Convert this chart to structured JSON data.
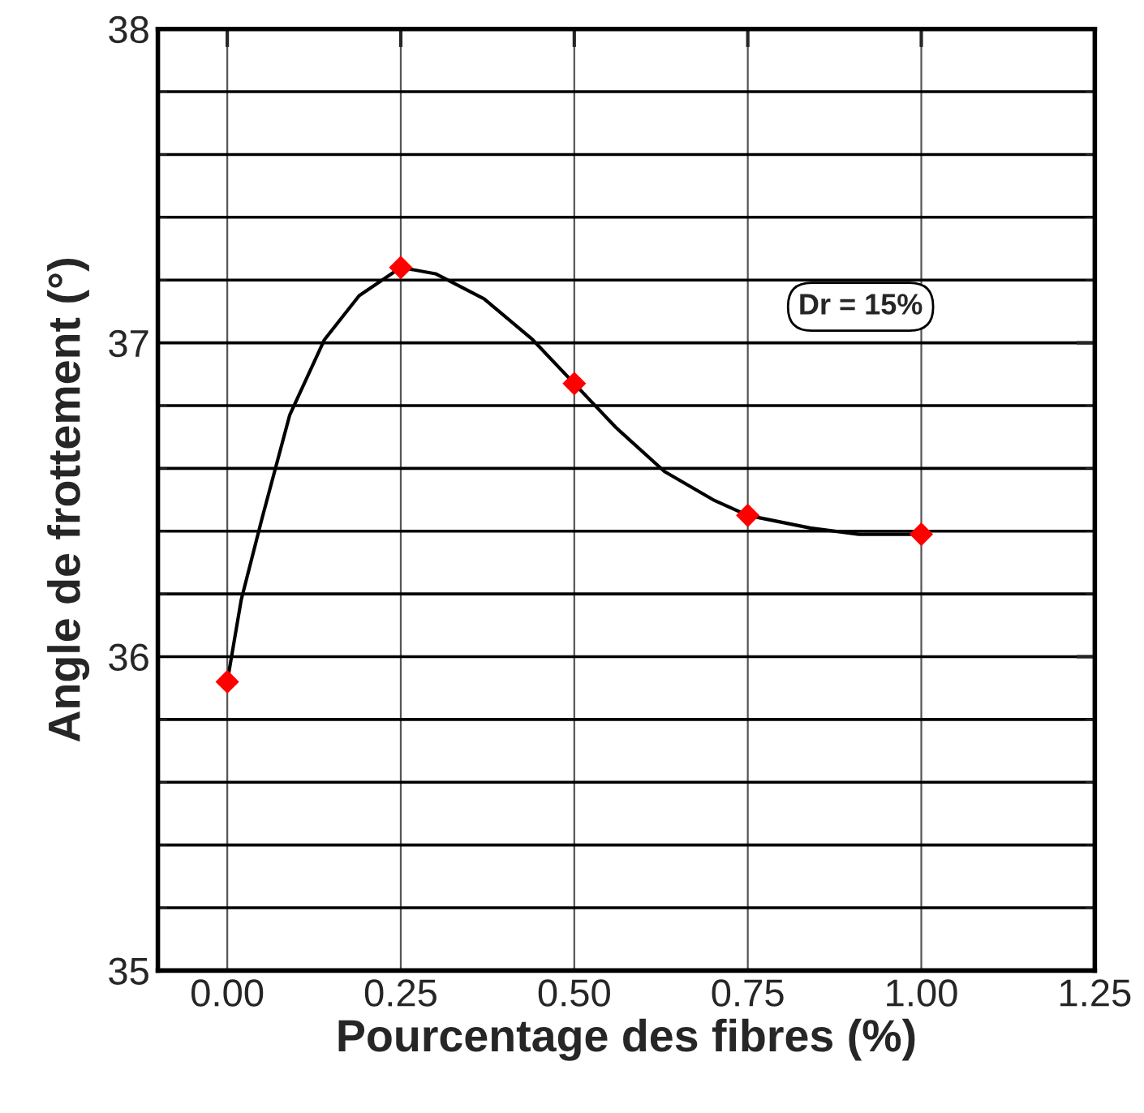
{
  "chart_data": {
    "type": "line",
    "xlabel": "Pourcentage des fibres (%)",
    "ylabel": "Angle de frottement (°)",
    "x": [
      0,
      0.25,
      0.5,
      0.75,
      1.0
    ],
    "series": [
      {
        "color": "#000000",
        "marker": "none",
        "x": [
          0,
          0.02,
          0.05,
          0.09,
          0.14,
          0.19,
          0.25,
          0.3,
          0.37,
          0.44,
          0.5,
          0.56,
          0.63,
          0.7,
          0.75,
          0.84,
          0.91,
          1.0
        ],
        "values": [
          35.92,
          36.18,
          36.44,
          36.77,
          37.01,
          37.15,
          37.24,
          37.22,
          37.14,
          37.01,
          36.87,
          36.73,
          36.59,
          36.5,
          36.45,
          36.41,
          36.39,
          36.39
        ]
      },
      {
        "type": "scatter",
        "color": "#ff0000",
        "marker": "diamond",
        "values": [
          35.92,
          37.24,
          36.87,
          36.45,
          36.39
        ]
      }
    ],
    "xlim": [
      -0.1,
      1.25
    ],
    "xticks": [
      {
        "value": 0,
        "label": "0.00"
      },
      {
        "value": 0.25,
        "label": "0.25"
      },
      {
        "value": 0.5,
        "label": "0.50"
      },
      {
        "value": 0.75,
        "label": "0.75"
      },
      {
        "value": 1.0,
        "label": "1.00"
      },
      {
        "value": 1.25,
        "label": "1.25"
      }
    ],
    "ylim": [
      35,
      38
    ],
    "yticks": [
      35,
      36,
      37,
      38
    ],
    "grid": true,
    "annotations": [
      "Dr = 15%"
    ]
  }
}
